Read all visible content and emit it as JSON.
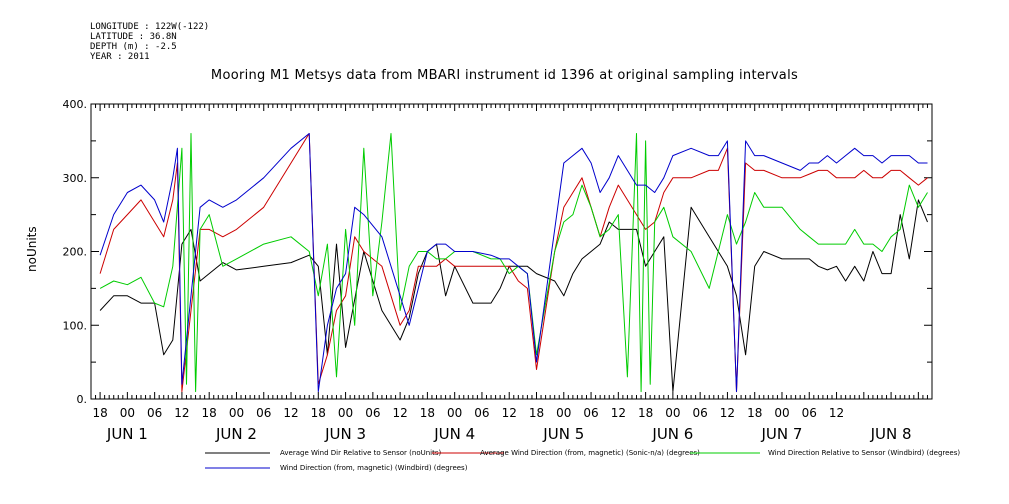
{
  "meta": {
    "longitude": "LONGITUDE : 122W(-122)",
    "latitude": "LATITUDE : 36.8N",
    "depth": "DEPTH (m) : -2.5",
    "year": "YEAR : 2011"
  },
  "chart_data": {
    "type": "line",
    "title": "Mooring M1 Metsys data from MBARI instrument id 1396 at original sampling intervals",
    "ylabel": "noUnits",
    "xlabel": "",
    "ylim": [
      0,
      400
    ],
    "y_ticks": [
      "0.",
      "100.",
      "200.",
      "300.",
      "400."
    ],
    "x_hour_ticks": [
      "18",
      "00",
      "06",
      "12",
      "18",
      "00",
      "06",
      "12",
      "18",
      "00",
      "06",
      "12",
      "18",
      "00",
      "06",
      "12",
      "18",
      "00",
      "06",
      "12",
      "18",
      "00",
      "06",
      "12",
      "18",
      "00",
      "06",
      "12"
    ],
    "x_day_labels": [
      "JUN  1",
      "JUN  2",
      "JUN  3",
      "JUN  4",
      "JUN  5",
      "JUN  6",
      "JUN  7",
      "JUN  8"
    ],
    "x_start_hour": -8,
    "x_end_hour": 177,
    "grid": false,
    "legend_position": "bottom",
    "series": [
      {
        "name": "Average Wind Dir Relative to Sensor (noUnits)",
        "color": "#000000",
        "x": [
          -6,
          -3,
          0,
          3,
          6,
          8,
          10,
          12,
          14,
          16,
          18,
          21,
          24,
          30,
          36,
          40,
          42,
          44,
          46,
          48,
          52,
          56,
          60,
          62,
          64,
          66,
          68,
          70,
          72,
          76,
          80,
          82,
          84,
          86,
          88,
          90,
          94,
          96,
          98,
          100,
          102,
          104,
          106,
          108,
          112,
          114,
          116,
          118,
          120,
          124,
          128,
          130,
          132,
          134,
          136,
          138,
          140,
          144,
          148,
          150,
          152,
          154,
          156,
          158,
          160,
          162,
          164,
          166,
          168,
          170,
          172,
          174,
          176
        ],
        "y": [
          120,
          140,
          140,
          130,
          130,
          60,
          80,
          210,
          230,
          160,
          170,
          185,
          175,
          180,
          185,
          195,
          180,
          60,
          210,
          70,
          200,
          120,
          80,
          110,
          170,
          200,
          210,
          140,
          180,
          130,
          130,
          150,
          180,
          180,
          180,
          170,
          160,
          140,
          170,
          190,
          200,
          210,
          240,
          230,
          230,
          180,
          200,
          220,
          10,
          260,
          220,
          200,
          180,
          140,
          60,
          180,
          200,
          190,
          190,
          190,
          180,
          175,
          180,
          160,
          180,
          160,
          200,
          170,
          170,
          250,
          190,
          270,
          240
        ]
      },
      {
        "name": "Average Wind Direction (from, magnetic) (Sonic-n/a) (degrees)",
        "color": "#cc0000",
        "x": [
          -6,
          -3,
          0,
          3,
          6,
          8,
          10,
          11,
          12,
          14,
          16,
          18,
          21,
          24,
          30,
          36,
          40,
          42,
          44,
          46,
          48,
          50,
          52,
          56,
          60,
          62,
          64,
          66,
          68,
          70,
          72,
          76,
          80,
          82,
          84,
          86,
          88,
          90,
          94,
          96,
          98,
          100,
          102,
          104,
          106,
          108,
          112,
          114,
          116,
          118,
          120,
          124,
          128,
          130,
          132,
          134,
          136,
          138,
          140,
          144,
          148,
          150,
          152,
          154,
          156,
          158,
          160,
          162,
          164,
          166,
          168,
          170,
          172,
          174,
          176
        ],
        "y": [
          170,
          230,
          250,
          270,
          240,
          220,
          270,
          320,
          10,
          120,
          230,
          230,
          220,
          230,
          260,
          320,
          360,
          20,
          60,
          120,
          140,
          220,
          200,
          180,
          100,
          120,
          180,
          180,
          180,
          190,
          180,
          180,
          180,
          180,
          180,
          160,
          150,
          40,
          200,
          260,
          280,
          300,
          260,
          220,
          260,
          290,
          250,
          230,
          240,
          280,
          300,
          300,
          310,
          310,
          340,
          10,
          320,
          310,
          310,
          300,
          300,
          305,
          310,
          310,
          300,
          300,
          300,
          310,
          300,
          300,
          310,
          310,
          300,
          290,
          300
        ]
      },
      {
        "name": "Wind Direction Relative to Sensor (Windbird) (degrees)",
        "color": "#00cc00",
        "x": [
          -6,
          -3,
          0,
          3,
          6,
          8,
          10,
          12,
          13,
          14,
          15,
          16,
          18,
          21,
          24,
          30,
          36,
          40,
          42,
          44,
          46,
          48,
          50,
          52,
          54,
          56,
          58,
          60,
          62,
          64,
          66,
          68,
          70,
          72,
          76,
          80,
          82,
          84,
          86,
          88,
          90,
          94,
          96,
          98,
          100,
          102,
          104,
          106,
          108,
          110,
          112,
          113,
          114,
          115,
          116,
          118,
          120,
          124,
          128,
          130,
          132,
          134,
          136,
          138,
          140,
          144,
          148,
          150,
          152,
          154,
          156,
          158,
          160,
          162,
          164,
          166,
          168,
          170,
          172,
          174,
          176
        ],
        "y": [
          150,
          160,
          155,
          165,
          130,
          125,
          180,
          340,
          20,
          360,
          10,
          230,
          250,
          180,
          190,
          210,
          220,
          200,
          140,
          210,
          30,
          230,
          100,
          340,
          140,
          240,
          360,
          120,
          180,
          200,
          200,
          190,
          190,
          200,
          200,
          190,
          190,
          170,
          180,
          170,
          60,
          200,
          240,
          250,
          290,
          260,
          220,
          230,
          250,
          30,
          360,
          10,
          350,
          20,
          240,
          260,
          220,
          200,
          150,
          200,
          250,
          210,
          240,
          280,
          260,
          260,
          230,
          220,
          210,
          210,
          210,
          210,
          230,
          210,
          210,
          200,
          220,
          230,
          290,
          260,
          280
        ]
      },
      {
        "name": "Wind Direction (from, magnetic) (Windbird) (degrees)",
        "color": "#0000cc",
        "x": [
          -6,
          -3,
          0,
          3,
          6,
          8,
          10,
          11,
          12,
          14,
          16,
          18,
          21,
          24,
          30,
          36,
          40,
          42,
          44,
          46,
          48,
          50,
          52,
          56,
          60,
          62,
          64,
          66,
          68,
          70,
          72,
          76,
          80,
          82,
          84,
          86,
          88,
          90,
          94,
          96,
          98,
          100,
          102,
          104,
          106,
          108,
          112,
          114,
          116,
          118,
          120,
          124,
          128,
          130,
          132,
          134,
          136,
          138,
          140,
          144,
          148,
          150,
          152,
          154,
          156,
          158,
          160,
          162,
          164,
          166,
          168,
          170,
          172,
          174,
          176
        ],
        "y": [
          195,
          250,
          280,
          290,
          270,
          240,
          300,
          340,
          20,
          140,
          260,
          270,
          260,
          270,
          300,
          340,
          360,
          10,
          100,
          150,
          170,
          260,
          250,
          220,
          140,
          100,
          150,
          200,
          210,
          210,
          200,
          200,
          195,
          190,
          190,
          180,
          170,
          50,
          230,
          320,
          330,
          340,
          320,
          280,
          300,
          330,
          290,
          290,
          280,
          300,
          330,
          340,
          330,
          330,
          350,
          10,
          350,
          330,
          330,
          320,
          310,
          320,
          320,
          330,
          320,
          330,
          340,
          330,
          330,
          320,
          330,
          330,
          330,
          320,
          320
        ]
      }
    ]
  }
}
